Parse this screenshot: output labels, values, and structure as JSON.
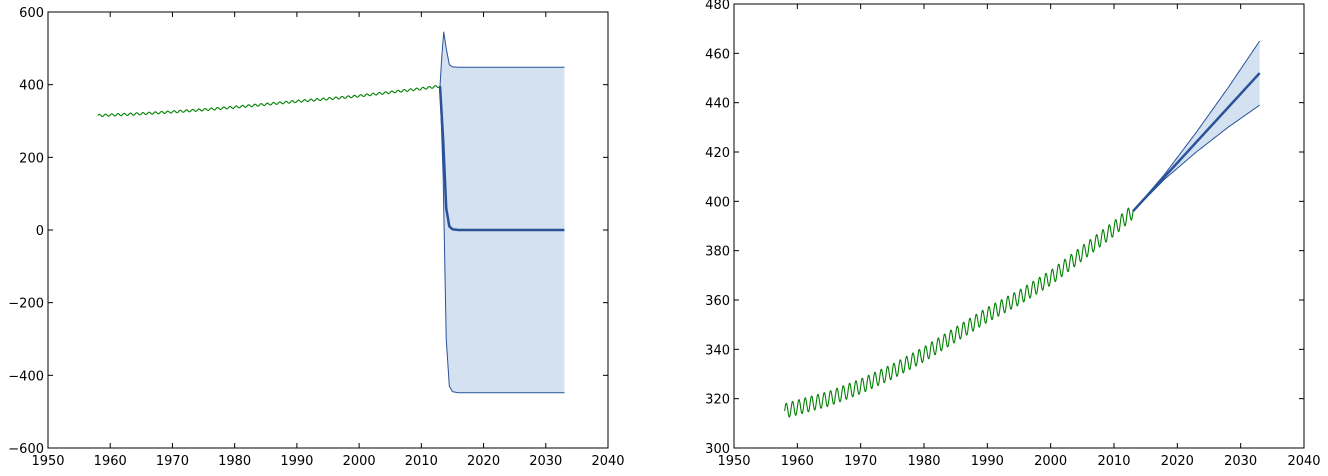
{
  "chart_data": [
    {
      "type": "line",
      "title": "",
      "xlabel": "",
      "ylabel": "",
      "xlim": [
        1950,
        2040
      ],
      "ylim": [
        -600,
        600
      ],
      "xticks": [
        1950,
        1960,
        1970,
        1980,
        1990,
        2000,
        2010,
        2020,
        2030,
        2040
      ],
      "yticks": [
        -600,
        -400,
        -200,
        0,
        200,
        400,
        600
      ],
      "xtick_labels": [
        "1950",
        "1960",
        "1970",
        "1980",
        "1990",
        "2000",
        "2010",
        "2020",
        "2030",
        "2040"
      ],
      "ytick_labels": [
        "−600",
        "−400",
        "−200",
        "0",
        "200",
        "400",
        "600"
      ],
      "grid": false,
      "series": [
        {
          "role": "observed",
          "color": "#008000",
          "seasonal_amplitude": 3,
          "x": [
            1958,
            1965,
            1970,
            1975,
            1980,
            1985,
            1990,
            1995,
            2000,
            2005,
            2010,
            2013
          ],
          "y": [
            315,
            320,
            325,
            331,
            338,
            346,
            354,
            361,
            369,
            379,
            389,
            396
          ]
        },
        {
          "role": "forecast-mean",
          "color": "#2a5298",
          "x": [
            2013,
            2013.5,
            2014,
            2014.5,
            2015,
            2016,
            2020,
            2025,
            2033
          ],
          "y": [
            396,
            250,
            60,
            10,
            2,
            0,
            0,
            0,
            0
          ]
        },
        {
          "role": "forecast-upper",
          "color": "#2a5298",
          "x": [
            2013,
            2013.3,
            2013.6,
            2014,
            2014.5,
            2015,
            2016,
            2020,
            2033
          ],
          "y": [
            396,
            480,
            545,
            500,
            455,
            449,
            448,
            448,
            448
          ]
        },
        {
          "role": "forecast-lower",
          "color": "#2a5298",
          "x": [
            2013,
            2013.5,
            2014,
            2014.5,
            2015,
            2016,
            2020,
            2033
          ],
          "y": [
            396,
            150,
            -300,
            -430,
            -445,
            -448,
            -448,
            -448
          ]
        }
      ],
      "band_fill": "#d3e1f1"
    },
    {
      "type": "line",
      "title": "",
      "xlabel": "",
      "ylabel": "",
      "xlim": [
        1950,
        2040
      ],
      "ylim": [
        300,
        480
      ],
      "xticks": [
        1950,
        1960,
        1970,
        1980,
        1990,
        2000,
        2010,
        2020,
        2030,
        2040
      ],
      "yticks": [
        300,
        320,
        340,
        360,
        380,
        400,
        420,
        440,
        460,
        480
      ],
      "xtick_labels": [
        "1950",
        "1960",
        "1970",
        "1980",
        "1990",
        "2000",
        "2010",
        "2020",
        "2030",
        "2040"
      ],
      "ytick_labels": [
        "300",
        "320",
        "340",
        "360",
        "380",
        "400",
        "420",
        "440",
        "460",
        "480"
      ],
      "grid": false,
      "series": [
        {
          "role": "observed",
          "color": "#008000",
          "seasonal_amplitude": 3,
          "x": [
            1958,
            1965,
            1970,
            1975,
            1980,
            1985,
            1990,
            1995,
            2000,
            2005,
            2010,
            2013
          ],
          "y": [
            315,
            320,
            325,
            331,
            338,
            346,
            354,
            361,
            369,
            379,
            389,
            396
          ]
        },
        {
          "role": "forecast-mean",
          "color": "#2a5298",
          "x": [
            2013,
            2018,
            2023,
            2028,
            2033
          ],
          "y": [
            396,
            410,
            424,
            438,
            452
          ]
        },
        {
          "role": "forecast-upper",
          "color": "#2a5298",
          "x": [
            2013,
            2018,
            2023,
            2028,
            2033
          ],
          "y": [
            396,
            411,
            428,
            446,
            465
          ]
        },
        {
          "role": "forecast-lower",
          "color": "#2a5298",
          "x": [
            2013,
            2018,
            2023,
            2028,
            2033
          ],
          "y": [
            396,
            409,
            420,
            430,
            439
          ]
        }
      ],
      "band_fill": "#d3e1f1"
    }
  ]
}
